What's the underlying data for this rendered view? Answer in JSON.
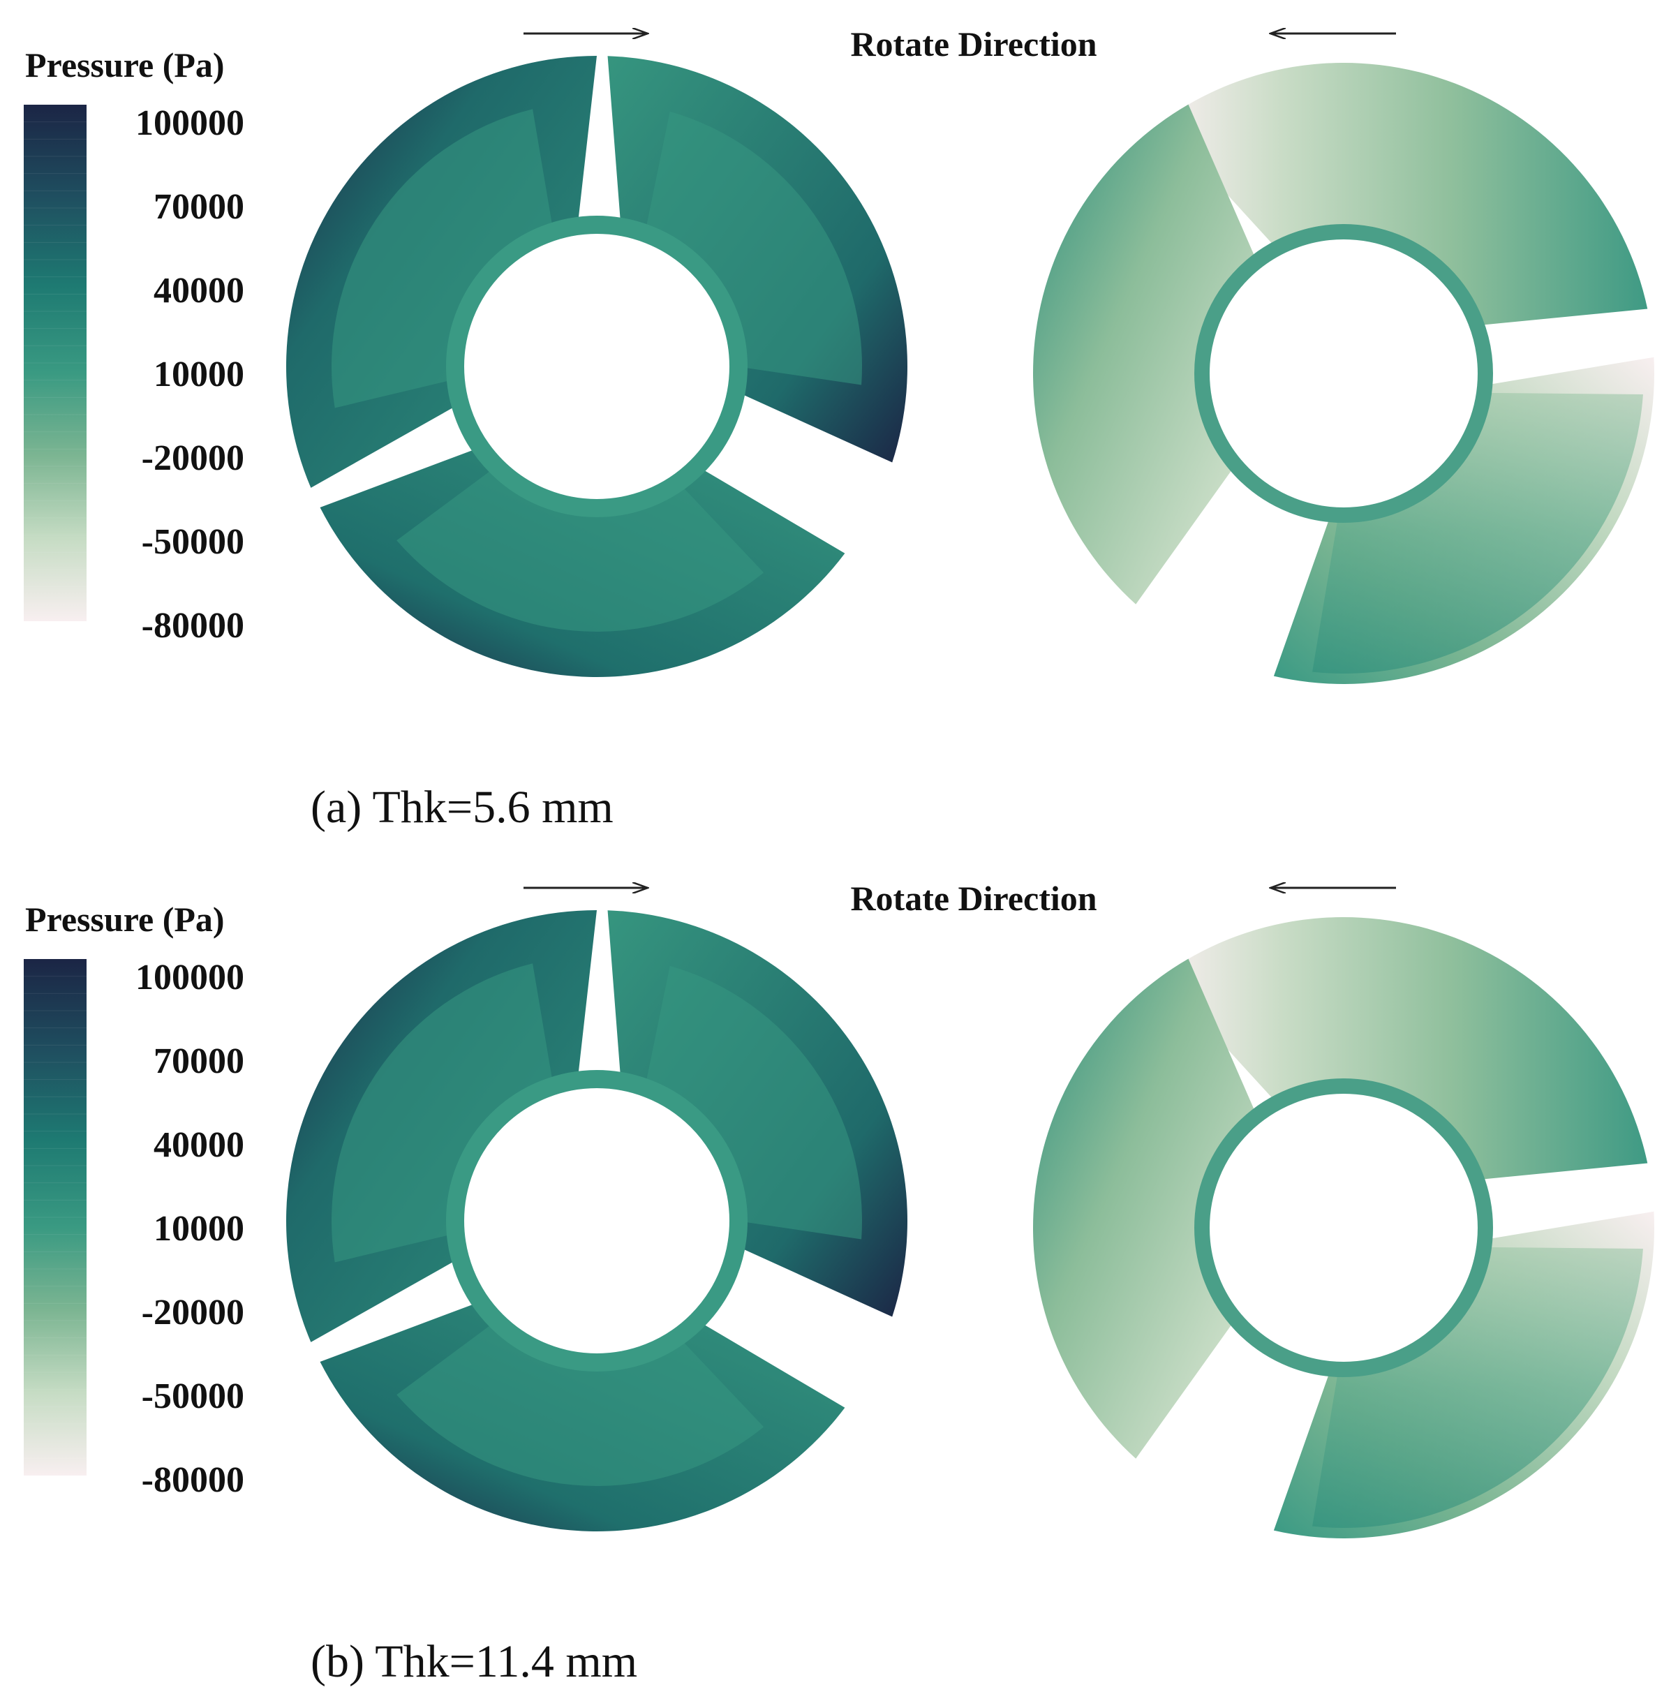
{
  "panels": [
    {
      "caption": "(a) Thk=5.6 mm",
      "direction_label": "Rotate Direction",
      "legend": {
        "title": "Pressure (Pa)",
        "ticks": [
          "100000",
          "70000",
          "40000",
          "10000",
          "-20000",
          "-50000",
          "-80000"
        ]
      }
    },
    {
      "caption": "(b) Thk=11.4 mm",
      "direction_label": "Rotate Direction",
      "legend": {
        "title": "Pressure (Pa)",
        "ticks": [
          "100000",
          "70000",
          "40000",
          "10000",
          "-20000",
          "-50000",
          "-80000"
        ]
      }
    }
  ],
  "colors": {
    "scale_high": "#1b2a4a",
    "scale_mid_high": "#1e7a72",
    "scale_mid": "#3a9a82",
    "scale_mid_low": "#8fbf9c",
    "scale_low": "#f7eeee",
    "text": "#111111",
    "arrow": "#222222"
  }
}
